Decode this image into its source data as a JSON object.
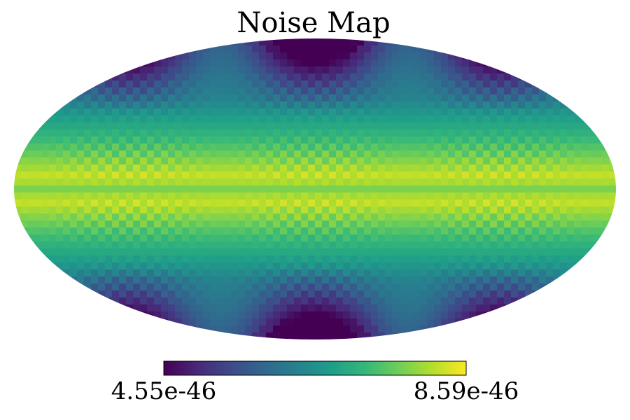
{
  "chart_data": {
    "type": "heatmap",
    "projection": "mollweide",
    "title": "Noise Map",
    "colormap": "viridis",
    "colormap_stops": [
      "#440154",
      "#482878",
      "#3e4a89",
      "#31688e",
      "#26828e",
      "#1f9e89",
      "#35b779",
      "#6ece58",
      "#b5de2b",
      "#fde725"
    ],
    "colorbar": {
      "min_label": "4.55e-46",
      "max_label": "8.59e-46",
      "min": 4.55e-46,
      "max": 8.59e-46
    },
    "bands": [
      {
        "region": "pole",
        "level": 0.3
      },
      {
        "region": "high-latitude",
        "level": 0.45
      },
      {
        "region": "mid-latitude",
        "level": 0.7
      },
      {
        "region": "low-latitude",
        "level": 0.92
      },
      {
        "region": "equator",
        "level": 0.8
      }
    ],
    "cold_spots": [
      {
        "location": "upper-left",
        "level": 0.05
      },
      {
        "location": "upper-center",
        "level": 0.0
      },
      {
        "location": "upper-right",
        "level": 0.05
      },
      {
        "location": "lower-left",
        "level": 0.05
      },
      {
        "location": "lower-center",
        "level": 0.0
      },
      {
        "location": "lower-right",
        "level": 0.05
      }
    ],
    "grid": false,
    "legend": "bottom-colorbar"
  }
}
